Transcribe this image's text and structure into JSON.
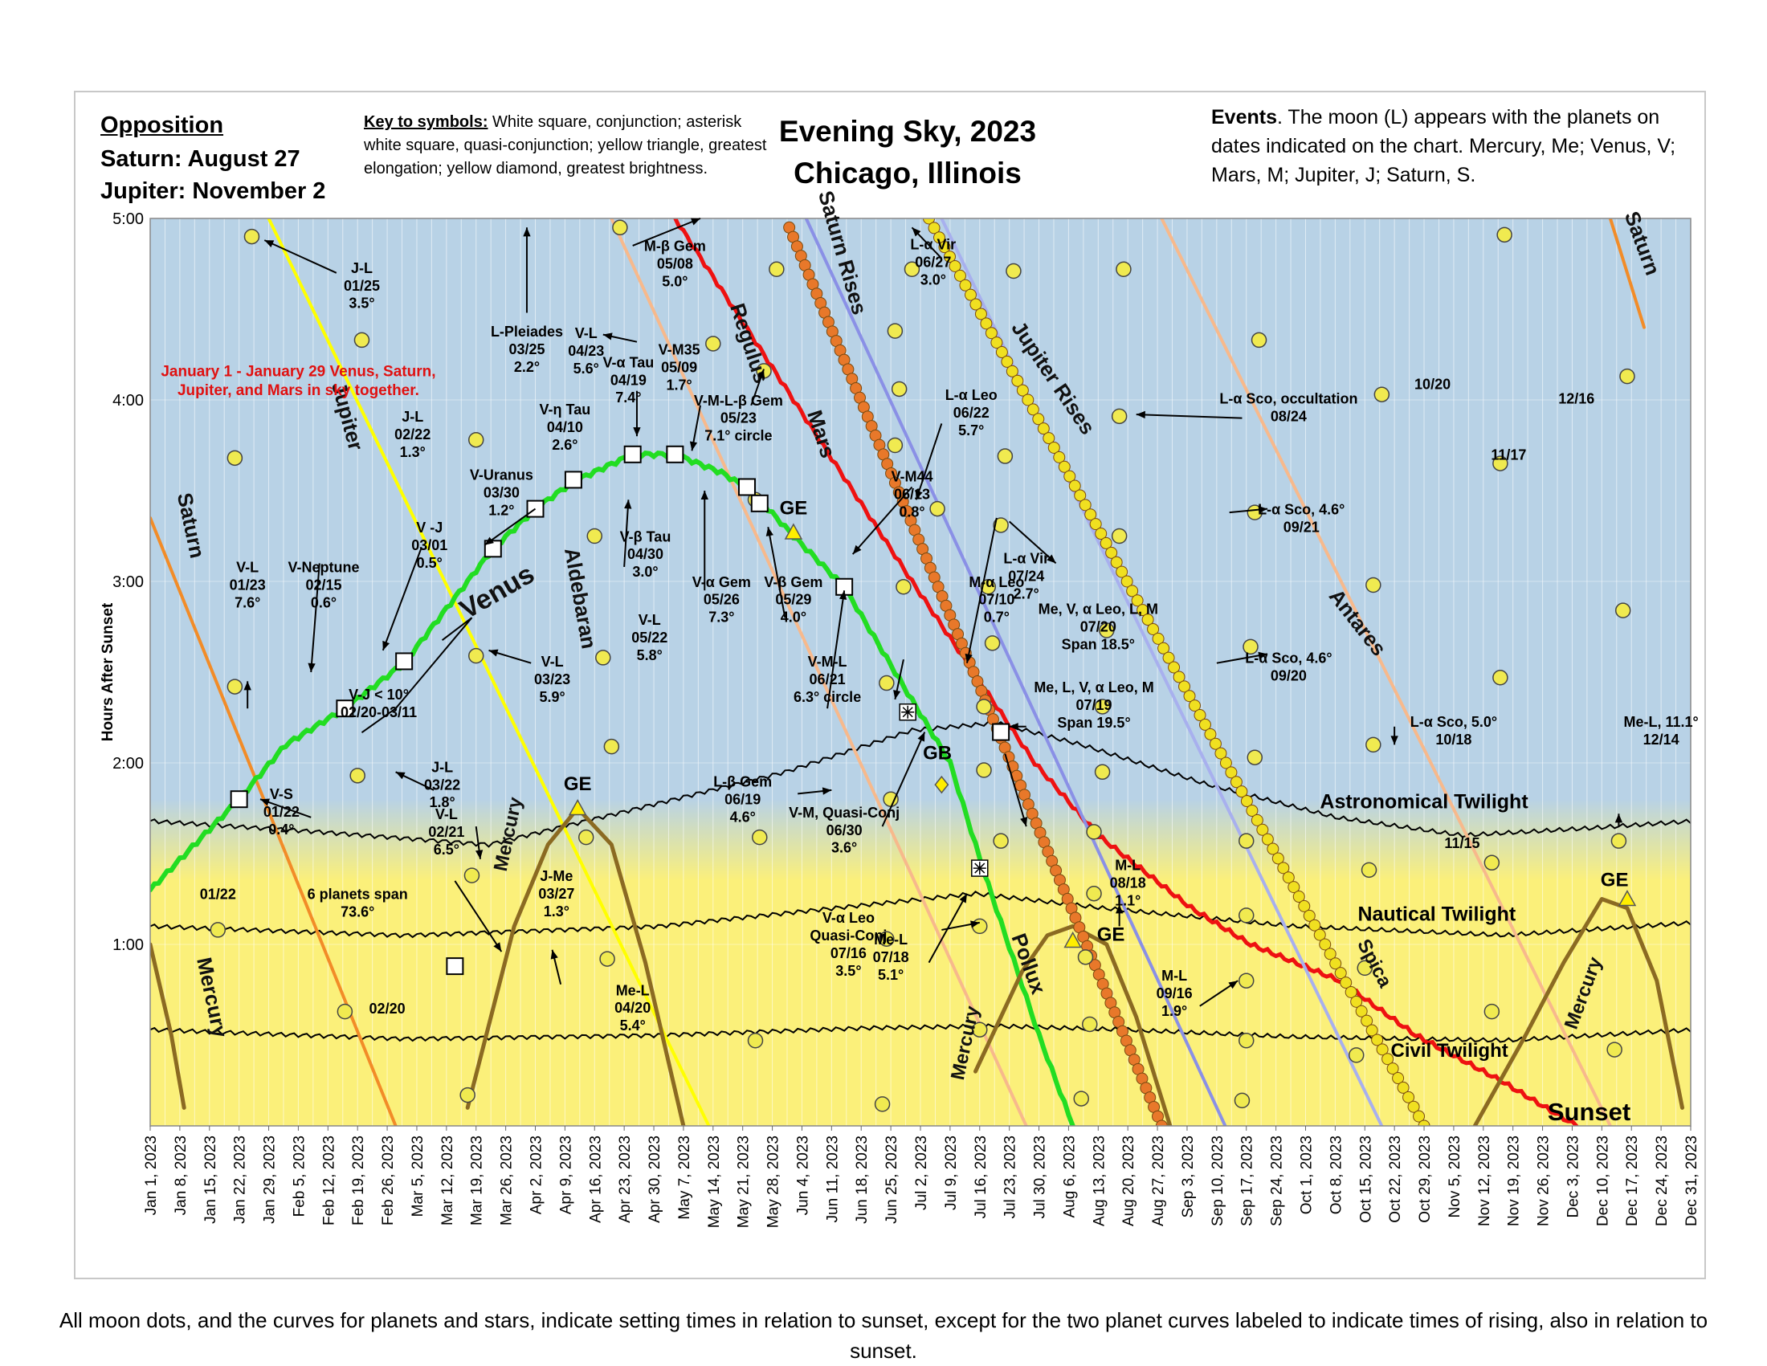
{
  "header": {
    "opposition_title": "Opposition",
    "opposition_lines": [
      "Saturn: August 27",
      "Jupiter: November 2"
    ],
    "key_title": "Key to symbols:",
    "key_text": " White square, conjunction; asterisk white square, quasi-conjunction; yellow triangle, greatest elongation; yellow diamond, greatest brightness.",
    "title_line1": "Evening Sky, 2023",
    "title_line2": "Chicago, Illinois",
    "events_title": "Events",
    "events_text": ".  The moon (L) appears with the planets on dates indicated on the chart. Mercury, Me; Venus, V; Mars, M; Jupiter, J; Saturn, S."
  },
  "footer": "All moon dots, and the curves for planets and stars, indicate setting  times in relation to sunset, except for the two planet curves labeled to indicate times of rising, also in relation to sunset.",
  "chart_data": {
    "type": "line",
    "title": "Evening Sky, 2023",
    "ylabel": "Hours After Sunset",
    "y_ticks": [
      "5:00",
      "4:00",
      "3:00",
      "2:00",
      "1:00"
    ],
    "ylim": [
      0,
      5
    ],
    "x_ticks": [
      "Jan 1, 2023",
      "Jan 8, 2023",
      "Jan 15, 2023",
      "Jan 22, 2023",
      "Jan 29, 2023",
      "Feb 5, 2023",
      "Feb 12, 2023",
      "Feb 19, 2023",
      "Feb 26, 2023",
      "Mar 5, 2023",
      "Mar 12, 2023",
      "Mar 19, 2023",
      "Mar 26, 2023",
      "Apr 2, 2023",
      "Apr 9, 2023",
      "Apr 16, 2023",
      "Apr 23, 2023",
      "Apr 30, 2023",
      "May 7, 2023",
      "May 14, 2023",
      "May 21, 2023",
      "May 28, 2023",
      "Jun 4, 2023",
      "Jun 11, 2023",
      "Jun 18, 2023",
      "Jun 25, 2023",
      "Jul 2, 2023",
      "Jul 9, 2023",
      "Jul 16, 2023",
      "Jul 23, 2023",
      "Jul 30, 2023",
      "Aug 6, 2023",
      "Aug 13, 2023",
      "Aug 20, 2023",
      "Aug 27, 2023",
      "Sep 3, 2023",
      "Sep 10, 2023",
      "Sep 17, 2023",
      "Sep 24, 2023",
      "Oct 1, 2023",
      "Oct 8, 2023",
      "Oct 15, 2023",
      "Oct 22, 2023",
      "Oct 29, 2023",
      "Nov 5, 2023",
      "Nov 12, 2023",
      "Nov 19, 2023",
      "Nov 26, 2023",
      "Dec 3, 2023",
      "Dec 10, 2023",
      "Dec 17, 2023",
      "Dec 24, 2023",
      "Dec 31, 2023"
    ],
    "background_colors": {
      "night": "#b8d2e6",
      "twilight": "#fbf07a"
    },
    "series": [
      {
        "name": "Saturn",
        "color": "#f28c28",
        "points": [
          [
            0,
            3.35
          ],
          [
            58,
            0
          ]
        ]
      },
      {
        "name": "Saturn",
        "color": "#f28c28",
        "points": [
          [
            345,
            5
          ],
          [
            353,
            4.4
          ]
        ]
      },
      {
        "name": "Jupiter",
        "color": "#ffff00",
        "points": [
          [
            28,
            5
          ],
          [
            132,
            0
          ]
        ]
      },
      {
        "name": "Aldebaran",
        "color": "#f7b98c",
        "points": [
          [
            109,
            5
          ],
          [
            207,
            0
          ]
        ]
      },
      {
        "name": "Mars",
        "color": "#ee1111",
        "points": [
          [
            124,
            5
          ],
          [
            152,
            4
          ],
          [
            180,
            3
          ],
          [
            209,
            2
          ],
          [
            224,
            1.6
          ],
          [
            246,
            1.2
          ],
          [
            260,
            1
          ],
          [
            281,
            0.8
          ],
          [
            299,
            0.5
          ],
          [
            319,
            0.25
          ],
          [
            337,
            0
          ]
        ]
      },
      {
        "name": "Regulus",
        "color": "#8a90e6",
        "points": [
          [
            155,
            5
          ],
          [
            254,
            0
          ]
        ]
      },
      {
        "name": "Spica",
        "color": "#a8b0ee",
        "points": [
          [
            187,
            5
          ],
          [
            291,
            0
          ]
        ]
      },
      {
        "name": "Antares",
        "color": "#f7b98c",
        "points": [
          [
            239,
            5
          ],
          [
            345,
            0
          ]
        ]
      },
      {
        "name": "Venus",
        "color": "#22dd22",
        "points": [
          [
            0,
            1.3
          ],
          [
            21,
            1.8
          ],
          [
            32,
            2.1
          ],
          [
            46,
            2.3
          ],
          [
            60,
            2.55
          ],
          [
            81,
            3.18
          ],
          [
            91,
            3.4
          ],
          [
            100,
            3.55
          ],
          [
            114,
            3.7
          ],
          [
            124,
            3.7
          ],
          [
            135,
            3.6
          ],
          [
            142,
            3.5
          ],
          [
            152,
            3.25
          ],
          [
            164,
            2.97
          ],
          [
            176,
            2.5
          ],
          [
            189,
            2.0
          ],
          [
            197,
            1.4
          ],
          [
            210,
            0.5
          ],
          [
            218,
            0
          ]
        ]
      }
    ],
    "rising_curves": [
      {
        "name": "Saturn Rises",
        "color": "#e8782a",
        "points": [
          [
            151,
            4.95
          ],
          [
            239,
            0
          ]
        ]
      },
      {
        "name": "Jupiter Rises",
        "color": "#f0e020",
        "points": [
          [
            184,
            5
          ],
          [
            301,
            0
          ]
        ]
      }
    ],
    "mercury_arcs": [
      {
        "points": [
          [
            0,
            1.0
          ],
          [
            5,
            0.5
          ],
          [
            8,
            0.1
          ]
        ]
      },
      {
        "points": [
          [
            75,
            0.1
          ],
          [
            86,
            1.1
          ],
          [
            94,
            1.55
          ],
          [
            101,
            1.75
          ],
          [
            109,
            1.55
          ],
          [
            117,
            0.9
          ],
          [
            126,
            0
          ]
        ]
      },
      {
        "points": [
          [
            195,
            0.3
          ],
          [
            206,
            0.85
          ],
          [
            212,
            1.05
          ],
          [
            218,
            1.1
          ],
          [
            226,
            1.0
          ],
          [
            233,
            0.6
          ],
          [
            241,
            0
          ]
        ]
      },
      {
        "points": [
          [
            313,
            0
          ],
          [
            325,
            0.5
          ],
          [
            334,
            0.9
          ],
          [
            343,
            1.25
          ],
          [
            349,
            1.2
          ],
          [
            356,
            0.8
          ],
          [
            362,
            0.1
          ]
        ]
      }
    ],
    "twilight_lines": {
      "Astronomical Twilight": [
        [
          0,
          1.68
        ],
        [
          40,
          1.62
        ],
        [
          80,
          1.55
        ],
        [
          110,
          1.72
        ],
        [
          150,
          1.95
        ],
        [
          180,
          2.18
        ],
        [
          200,
          2.22
        ],
        [
          220,
          2.1
        ],
        [
          250,
          1.88
        ],
        [
          280,
          1.7
        ],
        [
          310,
          1.6
        ],
        [
          340,
          1.64
        ],
        [
          365,
          1.68
        ]
      ],
      "Nautical Twilight": [
        [
          0,
          1.1
        ],
        [
          60,
          1.05
        ],
        [
          120,
          1.1
        ],
        [
          170,
          1.22
        ],
        [
          195,
          1.28
        ],
        [
          225,
          1.2
        ],
        [
          270,
          1.1
        ],
        [
          320,
          1.05
        ],
        [
          365,
          1.12
        ]
      ],
      "Civil Twilight": [
        [
          0,
          0.53
        ],
        [
          60,
          0.48
        ],
        [
          120,
          0.5
        ],
        [
          170,
          0.54
        ],
        [
          200,
          0.55
        ],
        [
          230,
          0.53
        ],
        [
          270,
          0.49
        ],
        [
          320,
          0.47
        ],
        [
          365,
          0.53
        ]
      ]
    },
    "conjunctions": [
      [
        21,
        1.8
      ],
      [
        46,
        2.3
      ],
      [
        60,
        2.56
      ],
      [
        81,
        3.18
      ],
      [
        91,
        3.4
      ],
      [
        100,
        3.56
      ],
      [
        114,
        3.7
      ],
      [
        124,
        3.7
      ],
      [
        141,
        3.52
      ],
      [
        144,
        3.43
      ],
      [
        164,
        2.97
      ],
      [
        201,
        2.17
      ],
      [
        72,
        0.88
      ]
    ],
    "quasi_conjunctions": [
      [
        179,
        2.28
      ],
      [
        196,
        1.42
      ]
    ],
    "elongations": [
      [
        101,
        1.75
      ],
      [
        152,
        3.27
      ],
      [
        218,
        1.02
      ],
      [
        349,
        1.25
      ]
    ],
    "greatest_brightness": [
      [
        187,
        1.88
      ]
    ],
    "moon_dots": [
      [
        24,
        4.9
      ],
      [
        20,
        3.68
      ],
      [
        50,
        4.33
      ],
      [
        20,
        2.42
      ],
      [
        16,
        1.08
      ],
      [
        49,
        1.93
      ],
      [
        46,
        0.63
      ],
      [
        77,
        3.78
      ],
      [
        77,
        2.59
      ],
      [
        76,
        1.38
      ],
      [
        75,
        0.17
      ],
      [
        111,
        4.95
      ],
      [
        148,
        4.72
      ],
      [
        145,
        4.16
      ],
      [
        133,
        4.31
      ],
      [
        105,
        3.25
      ],
      [
        143,
        3.45
      ],
      [
        109,
        2.09
      ],
      [
        107,
        2.58
      ],
      [
        108,
        0.92
      ],
      [
        103,
        1.59
      ],
      [
        143,
        0.47
      ],
      [
        144,
        1.59
      ],
      [
        176,
        4.38
      ],
      [
        180,
        4.72
      ],
      [
        177,
        4.06
      ],
      [
        176,
        3.75
      ],
      [
        186,
        3.4
      ],
      [
        178,
        2.97
      ],
      [
        174,
        2.44
      ],
      [
        175,
        1.8
      ],
      [
        174,
        1.03
      ],
      [
        173,
        0.12
      ],
      [
        204,
        4.71
      ],
      [
        202,
        3.69
      ],
      [
        201,
        3.31
      ],
      [
        198,
        2.97
      ],
      [
        199,
        2.66
      ],
      [
        197,
        2.31
      ],
      [
        197,
        1.96
      ],
      [
        201,
        1.57
      ],
      [
        196,
        1.1
      ],
      [
        196,
        0.53
      ],
      [
        230,
        4.72
      ],
      [
        229,
        3.91
      ],
      [
        229,
        3.25
      ],
      [
        226,
        2.73
      ],
      [
        225,
        2.31
      ],
      [
        225,
        1.95
      ],
      [
        223,
        1.62
      ],
      [
        223,
        1.28
      ],
      [
        221,
        0.93
      ],
      [
        222,
        0.56
      ],
      [
        220,
        0.15
      ],
      [
        262,
        4.33
      ],
      [
        261,
        3.38
      ],
      [
        260,
        2.64
      ],
      [
        261,
        2.03
      ],
      [
        259,
        1.57
      ],
      [
        259,
        1.16
      ],
      [
        259,
        0.8
      ],
      [
        259,
        0.47
      ],
      [
        258,
        0.14
      ],
      [
        291,
        4.03
      ],
      [
        289,
        2.98
      ],
      [
        289,
        2.1
      ],
      [
        288,
        1.41
      ],
      [
        287,
        0.87
      ],
      [
        285,
        0.39
      ],
      [
        320,
        4.91
      ],
      [
        319,
        3.65
      ],
      [
        319,
        2.47
      ],
      [
        317,
        1.45
      ],
      [
        317,
        0.63
      ],
      [
        349,
        4.13
      ],
      [
        348,
        2.84
      ],
      [
        347,
        1.57
      ],
      [
        346,
        0.42
      ]
    ],
    "twilight_labels": [
      "Astronomical Twilight",
      "Nautical Twilight",
      "Civil Twilight",
      "Sunset"
    ],
    "curve_labels": [
      "Saturn",
      "Jupiter",
      "Venus",
      "Aldebaran",
      "Mars",
      "Regulus",
      "Saturn Rises",
      "Jupiter Rises",
      "Antares",
      "Spica",
      "Pollux",
      "Mercury",
      "Mercury",
      "Mercury",
      "Mercury",
      "Saturn"
    ],
    "annotations": [
      {
        "text": "GE"
      },
      {
        "text": "GE"
      },
      {
        "text": "GE"
      },
      {
        "text": "GE"
      },
      {
        "text": "GB"
      },
      {
        "text": "J-L\n01/25\n3.5°"
      },
      {
        "text": "L-Pleiades\n03/25\n2.2°"
      },
      {
        "text": "M-β Gem\n05/08\n5.0°"
      },
      {
        "text": "L-α Vir\n06/27\n3.0°"
      },
      {
        "text": "V-L\n04/23\n5.6°"
      },
      {
        "text": "V-α Tau\n04/19\n7.4°"
      },
      {
        "text": "V-M35\n05/09\n1.7°"
      },
      {
        "text": "V-η Tau\n04/10\n2.6°"
      },
      {
        "text": "V-M-L-β Gem\n05/23\n7.1° circle"
      },
      {
        "text": "L-α Leo\n06/22\n5.7°"
      },
      {
        "text": "J-L\n02/22\n1.3°"
      },
      {
        "text": "V-Uranus\n03/30\n1.2°"
      },
      {
        "text": "V -J\n03/01\n0.5°"
      },
      {
        "text": "V-M44\n06/13\n0.8°"
      },
      {
        "text": "V-L\n01/23\n7.6°"
      },
      {
        "text": "V-Neptune\n02/15\n0.6°"
      },
      {
        "text": "V-β Tau\n04/30\n3.0°"
      },
      {
        "text": "V-α Gem\n05/26\n7.3°"
      },
      {
        "text": "V-β Gem\n05/29\n4.0°"
      },
      {
        "text": "V-L\n05/22\n5.8°"
      },
      {
        "text": "L-α Vir\n07/24\n2.7°"
      },
      {
        "text": "M-α Leo\n07/10\n0.7°"
      },
      {
        "text": "Me, V, α Leo, L, M\n07/20\nSpan 18.5°"
      },
      {
        "text": "Me, L, V, α Leo, M\n07/19\nSpan 19.5°"
      },
      {
        "text": "V-M-L\n06/21\n6.3° circle"
      },
      {
        "text": "V-J < 10°\n02/20-03/11"
      },
      {
        "text": "V-L\n03/23\n5.9°"
      },
      {
        "text": "L-β Gem\n06/19\n4.6°"
      },
      {
        "text": "V-M, Quasi-Conj\n06/30\n3.6°"
      },
      {
        "text": "V-S\n01/22\n0.4°"
      },
      {
        "text": "V-L\n02/21\n6.5°"
      },
      {
        "text": "J-L\n03/22\n1.8°"
      },
      {
        "text": "6 planets span\n73.6°"
      },
      {
        "text": "01/22"
      },
      {
        "text": "02/20"
      },
      {
        "text": "J-Me\n03/27\n1.3°"
      },
      {
        "text": "Me-L\n04/20\n5.4°"
      },
      {
        "text": "V-α Leo\nQuasi-Conj\n07/16\n3.5°"
      },
      {
        "text": "Me-L\n07/18\n5.1°"
      },
      {
        "text": "M-L\n08/18\n1.1°"
      },
      {
        "text": "M-L\n09/16\n1.9°"
      },
      {
        "text": "L-α Sco, occultation\n08/24"
      },
      {
        "text": "L-α Sco, 4.6°\n09/21"
      },
      {
        "text": "L-α Sco, 4.6°\n09/20"
      },
      {
        "text": "L-α Sco, 5.0°\n10/18"
      },
      {
        "text": "10/20"
      },
      {
        "text": "11/17"
      },
      {
        "text": "12/16"
      },
      {
        "text": "11/15"
      },
      {
        "text": "Me-L, 11.1°\n12/14"
      },
      {
        "text": "January 1 - January 29 Venus, Saturn,\nJupiter, and Mars in sky together."
      }
    ]
  }
}
